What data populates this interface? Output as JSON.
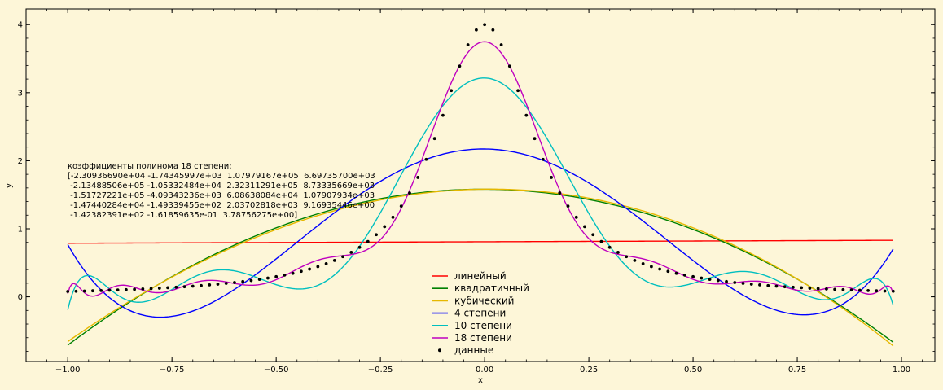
{
  "chart_data": {
    "type": "line",
    "title": "",
    "xlabel": "x",
    "ylabel": "y",
    "xlim": [
      -1.1,
      1.08
    ],
    "ylim": [
      -0.95,
      4.23
    ],
    "xticks": [
      -1.0,
      -0.75,
      -0.5,
      -0.25,
      0.0,
      0.25,
      0.5,
      0.75,
      1.0
    ],
    "xtick_labels": [
      "−1.00",
      "−0.75",
      "−0.50",
      "−0.25",
      "0.00",
      "0.25",
      "0.50",
      "0.75",
      "1.00"
    ],
    "yticks": [
      0,
      1,
      2,
      3,
      4
    ],
    "ytick_labels": [
      "0",
      "1",
      "2",
      "3",
      "4"
    ],
    "background_color": "#fdf6d8",
    "grid": false,
    "legend_position": "bottom-center",
    "x_domain": [
      -1.0,
      0.98
    ],
    "data_points": {
      "name": "данные",
      "color": "#000000",
      "x_start": -1.0,
      "x_step": 0.02,
      "count": 100,
      "formula": "4 / (1 + 50 x^2)"
    },
    "series": [
      {
        "name": "линейный",
        "color": "#ff0000",
        "degree": 1
      },
      {
        "name": "квадратичный",
        "color": "#008000",
        "degree": 2
      },
      {
        "name": "кубический",
        "color": "#e6b800",
        "degree": 3
      },
      {
        "name": "4 степени",
        "color": "#0000ff",
        "degree": 4
      },
      {
        "name": "10 степени",
        "color": "#00bfbf",
        "degree": 10
      },
      {
        "name": "18 степени",
        "color": "#bf00bf",
        "degree": 18
      }
    ],
    "annotation_lines": [
      "коэффициенты полинома 18 степени:",
      "[-2.30936690e+04 -1.74345997e+03  1.07979167e+05  6.69735700e+03",
      " -2.13488506e+05 -1.05332484e+04  2.32311291e+05  8.73335669e+03",
      " -1.51727221e+05 -4.09343236e+03  6.08638084e+04  1.07907934e+03",
      " -1.47440284e+04 -1.49339455e+02  2.03702818e+03  9.16935446e+00",
      " -1.42382391e+02 -1.61859635e-01  3.78756275e+00]"
    ]
  }
}
